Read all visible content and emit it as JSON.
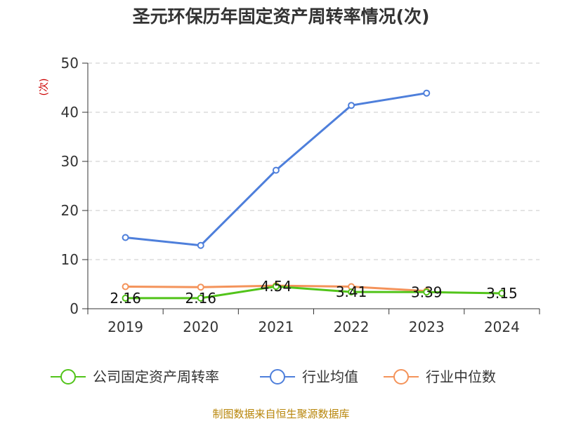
{
  "chart_data": {
    "type": "line",
    "title": "圣元环保历年固定资产周转率情况(次)",
    "ylabel": "(次)",
    "ylim": [
      0,
      50
    ],
    "yticks": [
      0,
      10,
      20,
      30,
      40,
      50
    ],
    "categories": [
      "2019",
      "2020",
      "2021",
      "2022",
      "2023",
      "2024"
    ],
    "grid": true,
    "legend_position": "bottom",
    "series": [
      {
        "name": "公司固定资产周转率",
        "color": "#52c41a",
        "values": [
          2.16,
          2.16,
          4.54,
          3.41,
          3.39,
          3.15
        ],
        "labels": [
          "2.16",
          "2.16",
          "4.54",
          "3.41",
          "3.39",
          "3.15"
        ]
      },
      {
        "name": "行业均值",
        "color": "#4e7fdb",
        "values": [
          14.5,
          12.9,
          28.2,
          41.4,
          43.9,
          null
        ]
      },
      {
        "name": "行业中位数",
        "color": "#f4935a",
        "values": [
          4.5,
          4.4,
          4.7,
          4.5,
          3.6,
          null
        ]
      }
    ]
  },
  "source": "制图数据来自恒生聚源数据库"
}
